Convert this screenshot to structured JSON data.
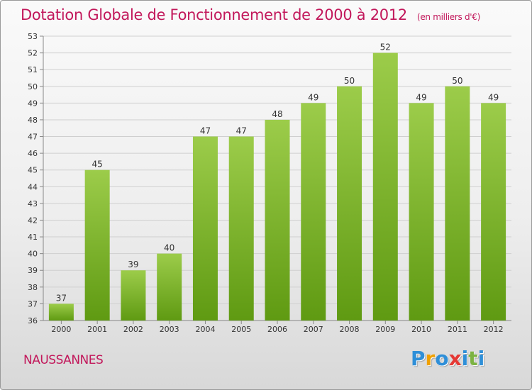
{
  "title": "Dotation Globale de Fonctionnement de 2000 à 2012",
  "subtitle": "(en milliers d'€)",
  "commune": "NAUSSANNES",
  "logo": {
    "text": "Proxiti",
    "letter_colors": [
      "#2f8fd8",
      "#f0a000",
      "#2f8fd8",
      "#e53935",
      "#2f8fd8",
      "#7cb342",
      "#2f8fd8"
    ]
  },
  "colors": {
    "title": "#c2185b",
    "bar_light": "#9ccc4a",
    "bar_dark": "#5f9a12",
    "grid": "#cfcfcf",
    "axis_text": "#333333"
  },
  "chart_data": {
    "type": "bar",
    "title": "Dotation Globale de Fonctionnement de 2000 à 2012",
    "subtitle": "(en milliers d'€)",
    "categories": [
      "2000",
      "2001",
      "2002",
      "2003",
      "2004",
      "2005",
      "2006",
      "2007",
      "2008",
      "2009",
      "2010",
      "2011",
      "2012"
    ],
    "values": [
      37,
      45,
      39,
      40,
      47,
      47,
      48,
      49,
      50,
      52,
      49,
      50,
      49
    ],
    "ylim": [
      36,
      53
    ],
    "yticks": [
      36,
      37,
      38,
      39,
      40,
      41,
      42,
      43,
      44,
      45,
      46,
      47,
      48,
      49,
      50,
      51,
      52,
      53
    ],
    "xlabel": "",
    "ylabel": "",
    "grid": true,
    "data_labels": true
  }
}
